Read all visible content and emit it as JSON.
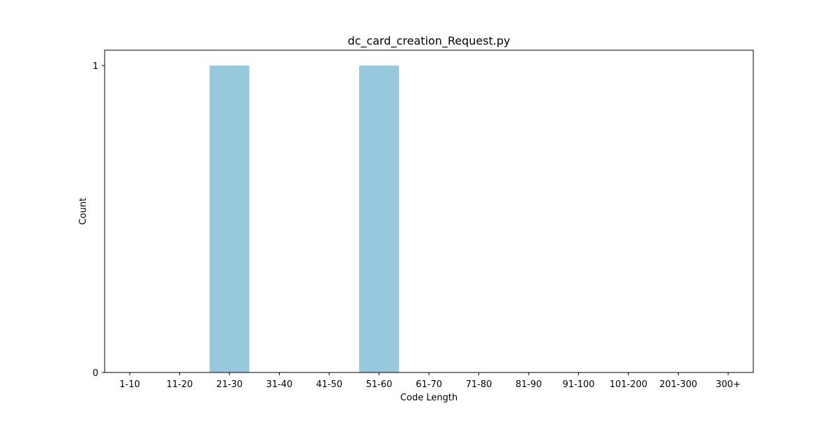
{
  "chart_data": {
    "type": "bar",
    "title": "dc_card_creation_Request.py",
    "xlabel": "Code Length",
    "ylabel": "Count",
    "categories": [
      "1-10",
      "11-20",
      "21-30",
      "31-40",
      "41-50",
      "51-60",
      "61-70",
      "71-80",
      "81-90",
      "91-100",
      "101-200",
      "201-300",
      "300+"
    ],
    "values": [
      0,
      0,
      1,
      0,
      0,
      1,
      0,
      0,
      0,
      0,
      0,
      0,
      0
    ],
    "ylim": [
      0,
      1
    ],
    "yticks": [
      0,
      1
    ],
    "grid": false,
    "legend": "none",
    "bar_color": "#96c9de"
  }
}
